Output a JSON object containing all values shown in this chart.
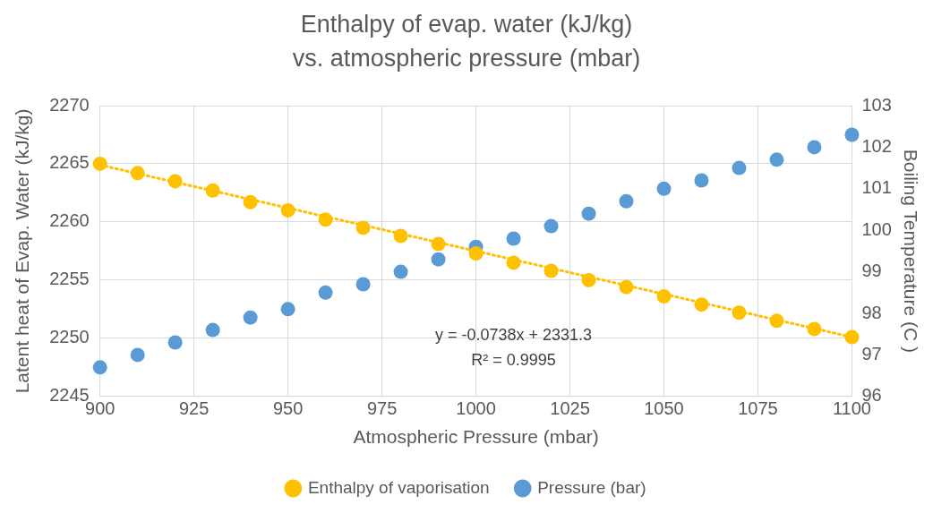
{
  "chart_data": {
    "type": "scatter",
    "title": "Enthalpy of evap. water (kJ/kg) vs. atmospheric pressure (mbar)",
    "xlabel": "Atmospheric Pressure (mbar)",
    "ylabel": "Latent heat of Evap. Water (kJ/kg)",
    "y2label": "Boiling Temperature (C )",
    "annotations": [
      "y = -0.0738x + 2331.3",
      "R² = 0.9995"
    ],
    "xlim": [
      900,
      1100
    ],
    "xticks": [
      900,
      925,
      950,
      975,
      1000,
      1025,
      1050,
      1075,
      1100
    ],
    "ylim": [
      2245,
      2270
    ],
    "yticks": [
      2245,
      2250,
      2255,
      2260,
      2265,
      2270
    ],
    "y2lim": [
      96,
      103
    ],
    "y2ticks": [
      96,
      97,
      98,
      99,
      100,
      101,
      102,
      103
    ],
    "grid": true,
    "legend": "bottom",
    "marker": "circle",
    "series": [
      {
        "name": "Enthalpy of vaporisation",
        "color": "#ffc000",
        "x": [
          900,
          910,
          920,
          930,
          940,
          950,
          960,
          970,
          980,
          990,
          1000,
          1010,
          1020,
          1030,
          1040,
          1050,
          1060,
          1070,
          1080,
          1090,
          1100
        ],
        "values": [
          2265.0,
          2264.2,
          2263.5,
          2262.7,
          2261.7,
          2261.0,
          2260.2,
          2259.5,
          2258.8,
          2258.1,
          2257.3,
          2256.5,
          2255.8,
          2255.0,
          2254.4,
          2253.6,
          2252.9,
          2252.2,
          2251.5,
          2250.8,
          2250.1
        ]
      },
      {
        "name": "Pressure (bar)",
        "color": "#5b9bd5",
        "axis": "y2",
        "x": [
          900,
          910,
          920,
          930,
          940,
          950,
          960,
          970,
          980,
          990,
          1000,
          1010,
          1020,
          1030,
          1040,
          1050,
          1060,
          1070,
          1080,
          1090,
          1100
        ],
        "values": [
          96.7,
          97.0,
          97.3,
          97.6,
          97.9,
          98.1,
          98.5,
          98.7,
          99.0,
          99.3,
          99.6,
          99.8,
          100.1,
          100.4,
          100.7,
          101.0,
          101.2,
          101.5,
          101.7,
          102.0,
          102.3
        ]
      },
      {
        "type": "line",
        "color": "#ffc000",
        "line_style": "dotted",
        "marker": "none",
        "x": [
          900,
          1100
        ],
        "values": [
          2264.9,
          2250.1
        ]
      }
    ]
  }
}
